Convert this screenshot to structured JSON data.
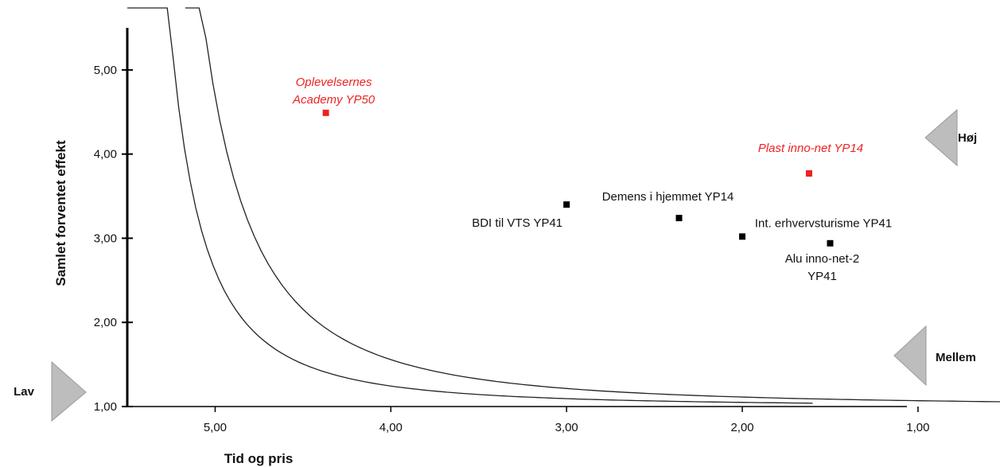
{
  "chart_data": {
    "type": "scatter",
    "xlabel": "Tid og pris",
    "ylabel": "Samlet forventet effekt",
    "xlim": [
      5.5,
      0.9
    ],
    "ylim": [
      1.0,
      5.5
    ],
    "x_reversed": true,
    "x_ticks": [
      5.0,
      4.0,
      3.0,
      2.0,
      1.0
    ],
    "x_tick_labels": [
      "5,00",
      "4,00",
      "3,00",
      "2,00",
      "1,00"
    ],
    "y_ticks": [
      1.0,
      2.0,
      3.0,
      4.0,
      5.0
    ],
    "y_tick_labels": [
      "1,00",
      "2,00",
      "3,00",
      "4,00",
      "5,00"
    ],
    "grid": false,
    "points": [
      {
        "label": [
          "Oplevelsernes",
          "Academy YP50"
        ],
        "x": 4.37,
        "y": 4.49,
        "color": "#ee2222"
      },
      {
        "label": [
          "Plast inno-net YP14"
        ],
        "x": 1.62,
        "y": 3.77,
        "color": "#ee2222"
      },
      {
        "label": [
          "BDI til VTS YP41"
        ],
        "x": 3.0,
        "y": 3.4,
        "color": "#000000"
      },
      {
        "label": [
          "Demens i hjemmet YP14"
        ],
        "x": 2.36,
        "y": 3.24,
        "color": "#000000"
      },
      {
        "label": [
          "Int. erhvervsturisme YP41"
        ],
        "x": 2.0,
        "y": 3.02,
        "color": "#000000"
      },
      {
        "label": [
          "Alu inno-net-2",
          "YP41"
        ],
        "x": 1.5,
        "y": 2.94,
        "color": "#000000"
      }
    ],
    "curves": [
      {
        "k": 16.0,
        "x_range": [
          5.17,
          0.45
        ]
      },
      {
        "k": 7.0,
        "x_range": [
          5.5,
          1.6
        ]
      }
    ],
    "zones": [
      {
        "label": "Høj",
        "y": 4.2,
        "side": "right"
      },
      {
        "label": "Mellem",
        "y": 1.6,
        "side": "right"
      },
      {
        "label": "Lav",
        "y": 1.2,
        "side": "left"
      }
    ]
  }
}
